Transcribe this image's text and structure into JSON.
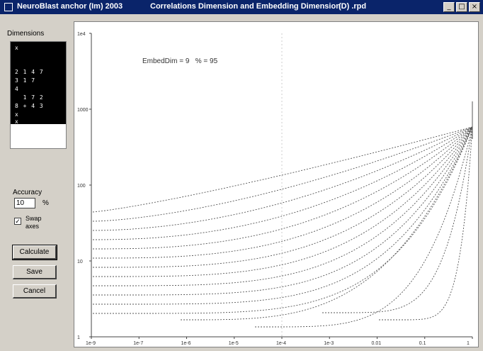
{
  "window": {
    "title_left": "NeuroBlast anchor (Im) 2003",
    "title_center": "Correlations Dimension and Embedding Dimension",
    "title_right": "(D) .rpd",
    "minimize": "_",
    "maximize": "□",
    "close": "×"
  },
  "sidebar": {
    "dimensions_label": "Dimensions",
    "dimensions_rows": [
      "x",
      "",
      "2 1 4 7",
      "3 1 7",
      "4",
      "  1 7 2",
      "8 + 4 3",
      "x",
      "x"
    ],
    "accuracy_label": "Accuracy",
    "accuracy_value": "10",
    "accuracy_unit": "%",
    "swap_axes_checked": "✓",
    "swap_axes_label": "Swap axes",
    "calculate_label": "Calculate",
    "save_label": "Save",
    "cancel_label": "Cancel"
  },
  "plot": {
    "annotation": "EmbedDim = 9   % = 95",
    "y_ticks": [
      "1e4",
      "1000",
      "100",
      "10",
      "1"
    ],
    "x_ticks": [
      "1e-9",
      "1e-7",
      "1e-6",
      "1e-5",
      "1e-4",
      "1e-3",
      "0.01",
      "0.1",
      "1"
    ],
    "line_color": "#555555"
  }
}
